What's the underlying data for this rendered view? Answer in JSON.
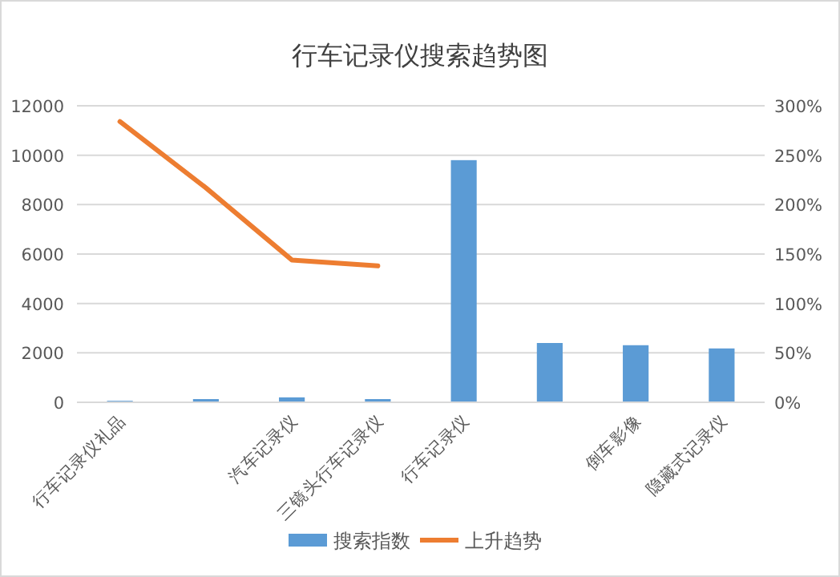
{
  "chart_data": {
    "type": "bar",
    "title": "行车记录仪搜索趋势图",
    "categories": [
      "行车记录仪礼品",
      null,
      "汽车记录仪",
      "三镜头行车记录仪",
      "行车记录仪",
      null,
      "倒车影像",
      "隐藏式记录仪"
    ],
    "series": [
      {
        "name": "搜索指数",
        "color": "#5b9bd5",
        "values": [
          60,
          130,
          200,
          130,
          9800,
          2400,
          2310,
          2180
        ]
      },
      {
        "name": "上升趋势",
        "type": "line",
        "axis": "y2",
        "color": "#ed7d31",
        "values": [
          284,
          217,
          144,
          138,
          null,
          null,
          null,
          null
        ]
      }
    ],
    "ylim": [
      0,
      12000
    ],
    "yticks": [
      0,
      2000,
      4000,
      6000,
      8000,
      10000,
      12000
    ],
    "y2lim": [
      0,
      300
    ],
    "y2ticks": [
      {
        "value": 0,
        "label": "0%"
      },
      {
        "value": 50,
        "label": "50%"
      },
      {
        "value": 100,
        "label": "100%"
      },
      {
        "value": 150,
        "label": "150%"
      },
      {
        "value": 200,
        "label": "200%"
      },
      {
        "value": 250,
        "label": "250%"
      },
      {
        "value": 300,
        "label": "300%"
      }
    ],
    "grid": "y",
    "legend": "bottom"
  }
}
